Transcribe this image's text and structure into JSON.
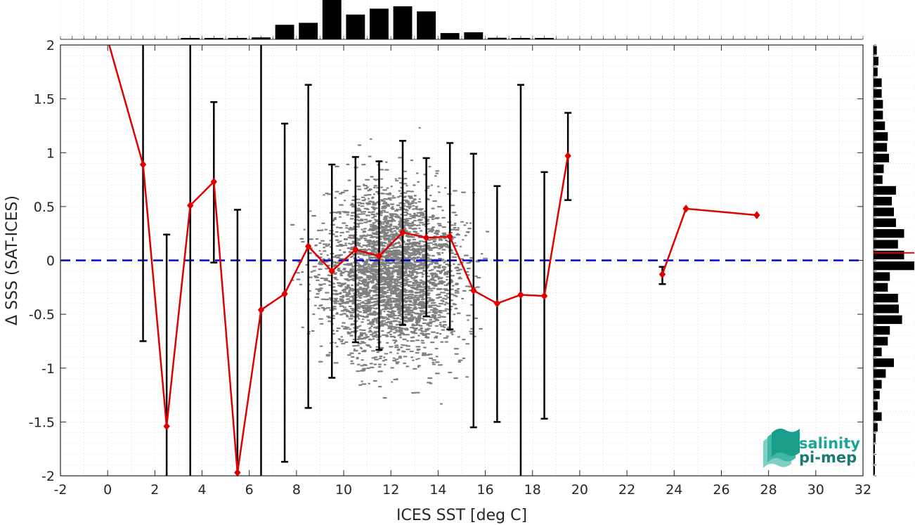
{
  "chart_data": {
    "type": "scatter",
    "title": "",
    "xlabel": "ICES SST [deg C]",
    "ylabel": "Δ SSS (SAT-ICES)",
    "xlim": [
      -2,
      32
    ],
    "ylim": [
      -2,
      2
    ],
    "xticks": [
      "-2",
      "0",
      "2",
      "4",
      "6",
      "8",
      "10",
      "12",
      "14",
      "16",
      "18",
      "20",
      "22",
      "24",
      "26",
      "28",
      "30",
      "32"
    ],
    "yticks": [
      "-2",
      "-1.5",
      "-1",
      "-0.5",
      "0",
      "0.5",
      "1",
      "1.5",
      "2"
    ],
    "grid": true,
    "reference_line": {
      "y": 0,
      "style": "dashed",
      "color": "#0000dd"
    },
    "series": [
      {
        "kind": "binned-mean-with-std",
        "color": "#e00000",
        "x": [
          0,
          1.5,
          2.5,
          3.5,
          4.5,
          5.5,
          6.5,
          7.5,
          8.5,
          9.5,
          10.5,
          11.5,
          12.5,
          13.5,
          14.5,
          15.5,
          16.5,
          17.5,
          18.5,
          19.5,
          23.5,
          24.5,
          27.5
        ],
        "y": [
          2.05,
          0.89,
          -1.54,
          0.51,
          0.73,
          -1.97,
          -0.46,
          -0.31,
          0.13,
          -0.1,
          0.1,
          0.04,
          0.26,
          0.21,
          0.22,
          -0.28,
          -0.4,
          -0.32,
          -0.33,
          0.97,
          -0.13,
          0.48,
          0.42
        ],
        "lower": [
          null,
          -0.75,
          -2.0,
          -2.0,
          -0.02,
          -2.0,
          -2.0,
          -1.87,
          -1.37,
          -1.09,
          -0.76,
          -0.83,
          -0.6,
          -0.52,
          -0.64,
          -1.55,
          -1.5,
          -2.0,
          -1.47,
          0.56,
          -0.22,
          null,
          null
        ],
        "upper": [
          null,
          2.0,
          0.24,
          2.0,
          1.47,
          0.47,
          2.0,
          1.27,
          1.63,
          0.89,
          0.96,
          0.92,
          1.11,
          0.95,
          1.09,
          0.99,
          0.69,
          1.63,
          0.82,
          1.37,
          -0.06,
          null,
          null
        ]
      }
    ],
    "scatter_cloud": {
      "color": "#808080",
      "description_x_range": [
        7,
        16.5
      ],
      "density_center": [
        12,
        -0.1
      ]
    },
    "top_histogram": {
      "bin_centers": [
        -1.5,
        -0.5,
        0.5,
        1.5,
        2.5,
        3.5,
        4.5,
        5.5,
        6.5,
        7.5,
        8.5,
        9.5,
        10.5,
        11.5,
        12.5,
        13.5,
        14.5,
        15.5,
        16.5,
        17.5,
        18.5,
        19.5,
        20.5,
        21.5,
        22.5,
        23.5,
        24.5,
        25.5,
        26.5,
        27.5,
        28.5,
        29.5,
        30.5,
        31.5
      ],
      "counts": [
        0,
        0,
        0,
        0,
        0,
        0.02,
        0.03,
        0.03,
        0.05,
        0.37,
        0.42,
        1.0,
        0.63,
        0.78,
        0.84,
        0.71,
        0.16,
        0.18,
        0.04,
        0.03,
        0.02,
        0,
        0,
        0,
        0,
        0,
        0,
        0,
        0,
        0,
        0,
        0,
        0,
        0
      ]
    },
    "right_histogram": {
      "bin_centers": [
        1.95,
        1.85,
        1.75,
        1.65,
        1.55,
        1.45,
        1.35,
        1.25,
        1.15,
        1.05,
        0.95,
        0.85,
        0.75,
        0.65,
        0.55,
        0.45,
        0.35,
        0.25,
        0.15,
        0.05,
        -0.05,
        -0.15,
        -0.25,
        -0.35,
        -0.45,
        -0.55,
        -0.65,
        -0.75,
        -0.85,
        -0.95,
        -1.05,
        -1.15,
        -1.25,
        -1.35,
        -1.45,
        -1.55,
        -1.65,
        -1.75,
        -1.85,
        -1.95
      ],
      "counts": [
        0.08,
        0.12,
        0.1,
        0.2,
        0.2,
        0.23,
        0.23,
        0.28,
        0.35,
        0.33,
        0.38,
        0.25,
        0.22,
        0.55,
        0.45,
        0.5,
        0.55,
        0.75,
        0.6,
        0.75,
        1.0,
        0.4,
        0.35,
        0.6,
        0.62,
        0.7,
        0.4,
        0.35,
        0.2,
        0.5,
        0.3,
        0.2,
        0.15,
        0.1,
        0.2,
        0.1,
        0.05,
        0.03,
        0.02,
        0.02
      ],
      "median_marker": {
        "y": 0.07,
        "color": "#e00000"
      }
    }
  },
  "logo": {
    "line1": "salinity",
    "line2": "pi-mep",
    "color": "#1aa597"
  }
}
